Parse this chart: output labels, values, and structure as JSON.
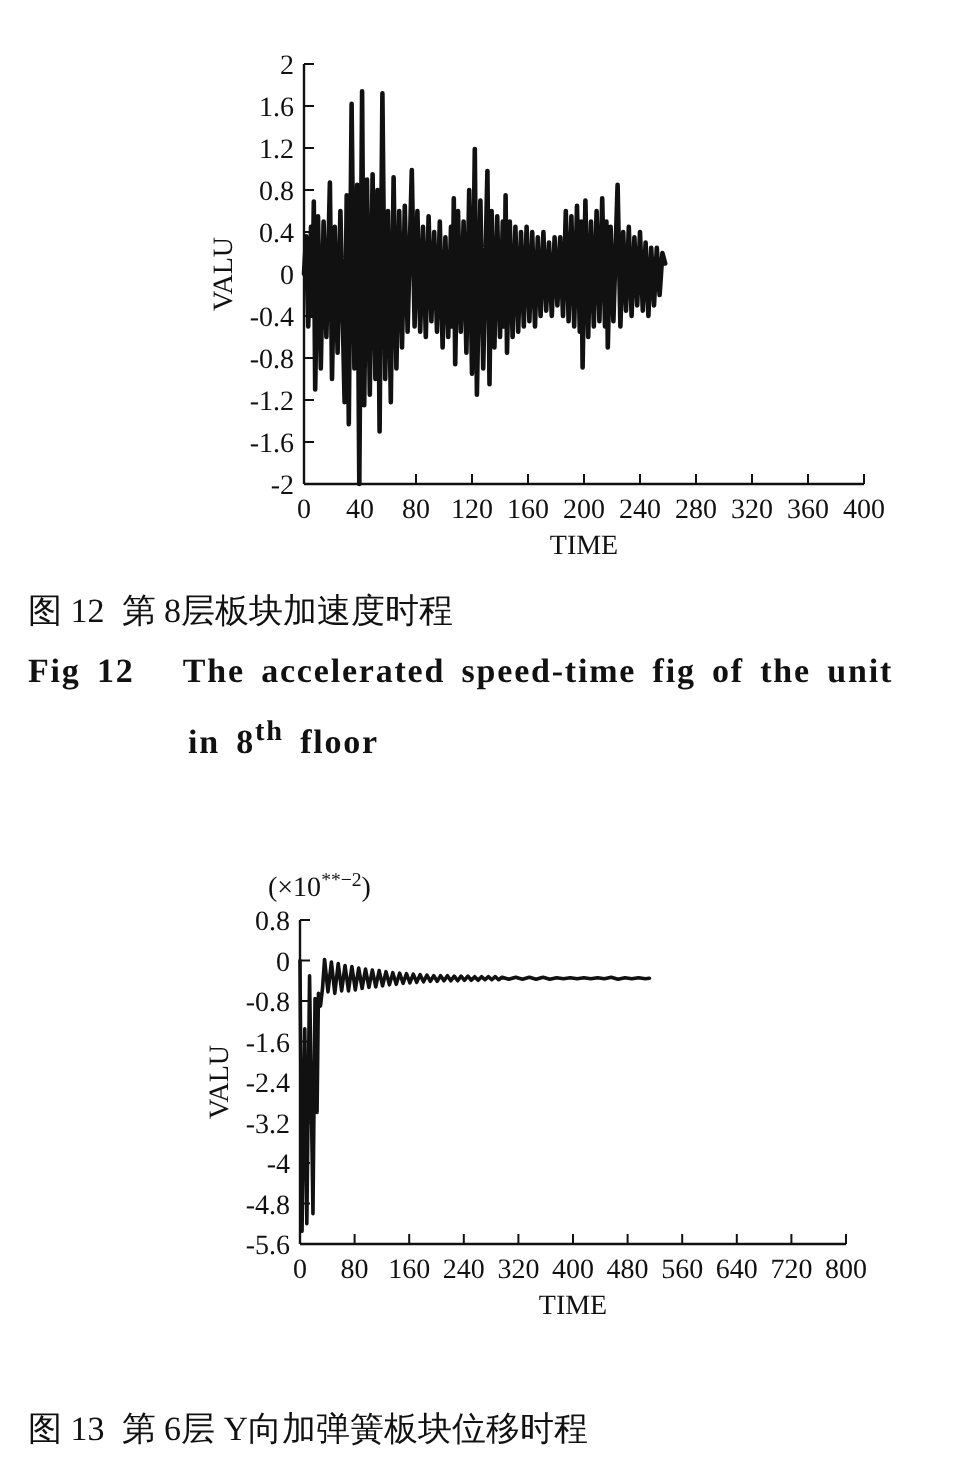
{
  "chart_data": [
    {
      "type": "line",
      "title": "图 12  第 8层板块加速度时程",
      "subtitle": "Fig 12   The accelerated speed-time fig of the unit in 8$^{th}$ floor",
      "xlabel": "TIME",
      "ylabel": "VALU",
      "color": "#111111",
      "x": [
        0,
        1.5,
        3,
        5,
        6,
        7,
        8,
        10,
        12,
        14,
        16,
        18.5,
        20,
        22,
        24,
        26,
        29,
        30.5,
        32,
        34,
        36,
        38,
        39.5,
        41.5,
        43,
        45,
        47,
        49,
        51,
        52.5,
        54,
        56,
        58,
        60,
        62,
        64,
        66,
        68,
        70,
        72,
        74,
        77,
        79,
        81,
        83,
        85,
        87,
        89,
        91,
        93,
        95,
        97,
        99,
        101,
        103,
        105,
        106,
        107,
        108,
        110,
        112,
        114,
        116,
        118,
        120,
        122,
        123.5,
        126,
        128,
        131,
        132.5,
        134,
        136,
        138,
        140,
        142,
        143,
        144,
        145,
        147,
        149,
        151,
        153,
        155,
        157,
        159,
        161,
        163,
        165,
        167,
        169,
        171,
        173,
        175,
        177,
        179,
        181,
        183,
        185,
        187,
        189,
        191,
        193,
        195,
        197,
        198,
        199,
        201,
        203,
        205,
        207,
        209,
        211,
        213,
        215,
        216,
        217,
        219,
        221,
        224,
        226,
        228,
        230,
        232,
        234,
        236,
        238,
        240,
        242,
        244,
        246,
        248,
        250,
        252,
        254,
        256,
        258
      ],
      "values": [
        0,
        0.36,
        -0.5,
        0.45,
        -0.4,
        0.69,
        -1.1,
        0.55,
        -0.9,
        0.5,
        -0.6,
        0.87,
        -1.0,
        0.45,
        -0.75,
        0.6,
        -1.22,
        0.75,
        -1.43,
        1.62,
        -0.9,
        0.85,
        -2.0,
        1.74,
        -1.25,
        0.9,
        -1.15,
        0.95,
        -1.0,
        0.8,
        -1.5,
        1.72,
        -1.0,
        0.6,
        -1.22,
        0.92,
        -0.9,
        0.6,
        -0.7,
        0.65,
        -0.55,
        0.99,
        -0.5,
        0.6,
        -0.55,
        0.45,
        -0.6,
        0.55,
        -0.45,
        0.4,
        -0.55,
        0.5,
        -0.7,
        0.35,
        -0.6,
        0.45,
        -0.5,
        0.72,
        -0.86,
        0.6,
        -0.55,
        0.5,
        -0.75,
        0.8,
        -0.95,
        1.19,
        -1.15,
        0.7,
        -0.9,
        0.98,
        -1.05,
        0.6,
        -0.7,
        0.55,
        -0.6,
        0.5,
        -0.5,
        0.75,
        -0.75,
        0.5,
        -0.6,
        0.45,
        -0.55,
        0.4,
        -0.5,
        0.45,
        -0.45,
        0.4,
        -0.5,
        0.35,
        -0.4,
        0.4,
        -0.35,
        0.3,
        -0.4,
        0.35,
        -0.3,
        0.35,
        -0.4,
        0.6,
        -0.45,
        0.55,
        -0.5,
        0.65,
        -0.55,
        0.5,
        -0.89,
        0.7,
        -0.6,
        0.5,
        -0.5,
        0.6,
        -0.45,
        0.72,
        -0.5,
        0.5,
        -0.7,
        0.45,
        -0.45,
        0.85,
        -0.5,
        0.4,
        -0.35,
        0.45,
        -0.4,
        0.35,
        -0.3,
        0.4,
        -0.35,
        0.3,
        -0.4,
        0.25,
        -0.3,
        0.25,
        -0.2,
        0.2,
        0.1
      ],
      "xlim": [
        0,
        400
      ],
      "ylim": [
        -2,
        2
      ],
      "xticks": [
        0,
        40,
        80,
        120,
        160,
        200,
        240,
        280,
        320,
        360,
        400
      ],
      "yticks": [
        2,
        1.6,
        1.2,
        0.8,
        0.4,
        0,
        -0.4,
        -0.8,
        -1.2,
        -1.6,
        -2
      ]
    },
    {
      "type": "line",
      "title": "图 13  第 6层 Y向加弹簧板块位移时程",
      "xlabel": "TIME",
      "ylabel": "VALU",
      "annotations": [
        "(×10$^{**−2}$)"
      ],
      "color": "#111111",
      "x": [
        0,
        3,
        7,
        10,
        14,
        19,
        22,
        25,
        27,
        30,
        33,
        36,
        41,
        46,
        51,
        56,
        61,
        66,
        71,
        76,
        81,
        86,
        91,
        96,
        101,
        106,
        111,
        116,
        121,
        126,
        131,
        136,
        141,
        146,
        151,
        156,
        161,
        166,
        171,
        176,
        181,
        186,
        191,
        196,
        201,
        206,
        211,
        216,
        221,
        226,
        231,
        236,
        241,
        246,
        251,
        256,
        261,
        266,
        271,
        276,
        281,
        286,
        291,
        296,
        306,
        316,
        326,
        336,
        346,
        356,
        366,
        376,
        386,
        396,
        406,
        416,
        426,
        436,
        446,
        456,
        466,
        476,
        486,
        496,
        506,
        512
      ],
      "values": [
        0,
        -5.35,
        -1.35,
        -5.2,
        -0.3,
        -5.0,
        -0.75,
        -3.0,
        -0.65,
        -0.9,
        -0.55,
        0.02,
        -0.62,
        -0.03,
        -0.65,
        -0.06,
        -0.6,
        -0.1,
        -0.6,
        -0.12,
        -0.58,
        -0.15,
        -0.55,
        -0.17,
        -0.53,
        -0.19,
        -0.52,
        -0.2,
        -0.5,
        -0.22,
        -0.48,
        -0.24,
        -0.47,
        -0.25,
        -0.45,
        -0.26,
        -0.44,
        -0.27,
        -0.43,
        -0.28,
        -0.42,
        -0.29,
        -0.41,
        -0.3,
        -0.41,
        -0.3,
        -0.4,
        -0.3,
        -0.4,
        -0.31,
        -0.4,
        -0.31,
        -0.39,
        -0.31,
        -0.39,
        -0.32,
        -0.39,
        -0.32,
        -0.38,
        -0.32,
        -0.38,
        -0.32,
        -0.38,
        -0.33,
        -0.37,
        -0.33,
        -0.37,
        -0.33,
        -0.37,
        -0.33,
        -0.37,
        -0.34,
        -0.36,
        -0.34,
        -0.36,
        -0.34,
        -0.36,
        -0.34,
        -0.36,
        -0.33,
        -0.37,
        -0.34,
        -0.36,
        -0.34,
        -0.36,
        -0.35
      ],
      "xlim": [
        0,
        800
      ],
      "ylim": [
        -5.6,
        0.8
      ],
      "xticks": [
        0,
        80,
        160,
        240,
        320,
        400,
        480,
        560,
        640,
        720,
        800
      ],
      "yticks": [
        0.8,
        0,
        -0.8,
        -1.6,
        -2.4,
        -3.2,
        -4,
        -4.8,
        -5.6
      ]
    }
  ]
}
